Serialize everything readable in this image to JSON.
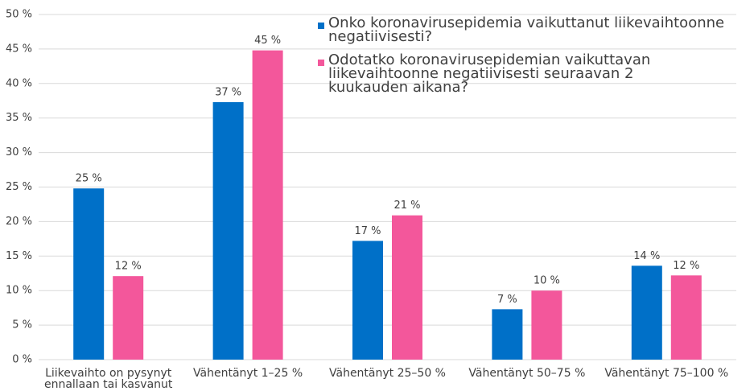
{
  "chart_data": {
    "type": "bar",
    "categories": [
      "Liikevaihto on pysynyt ennallaan tai kasvanut",
      "Vähentänyt 1–25 %",
      "Vähentänyt 25–50 %",
      "Vähentänyt 50–75 %",
      "Vähentänyt 75–100 %"
    ],
    "series": [
      {
        "name": "Onko koronavirusepidemia vaikuttanut liikevaihtoonne negatiivisesti?",
        "color": "#0070c8",
        "values": [
          24.8,
          37.3,
          17.2,
          7.3,
          13.6
        ],
        "value_labels": [
          "25 %",
          "37 %",
          "17 %",
          "7 %",
          "14 %"
        ]
      },
      {
        "name": "Odotatko koronavirusepidemian vaikuttavan liikevaihtoonne negatiivisesti seuraavan 2 kuukauden aikana?",
        "color": "#f3579b",
        "values": [
          12.1,
          44.8,
          20.9,
          10.0,
          12.2
        ],
        "value_labels": [
          "12 %",
          "45 %",
          "21 %",
          "10 %",
          "12 %"
        ]
      }
    ],
    "ylim": [
      0,
      50
    ],
    "yticks": [
      {
        "value": 0,
        "label": "0 %"
      },
      {
        "value": 5,
        "label": "5 %"
      },
      {
        "value": 10,
        "label": "10 %"
      },
      {
        "value": 15,
        "label": "15 %"
      },
      {
        "value": 20,
        "label": "20 %"
      },
      {
        "value": 25,
        "label": "25 %"
      },
      {
        "value": 30,
        "label": "30 %"
      },
      {
        "value": 35,
        "label": "35 %"
      },
      {
        "value": 40,
        "label": "40 %"
      },
      {
        "value": 45,
        "label": "45 %"
      },
      {
        "value": 50,
        "label": "50 %"
      }
    ],
    "grid": true,
    "legend": "top-right"
  }
}
